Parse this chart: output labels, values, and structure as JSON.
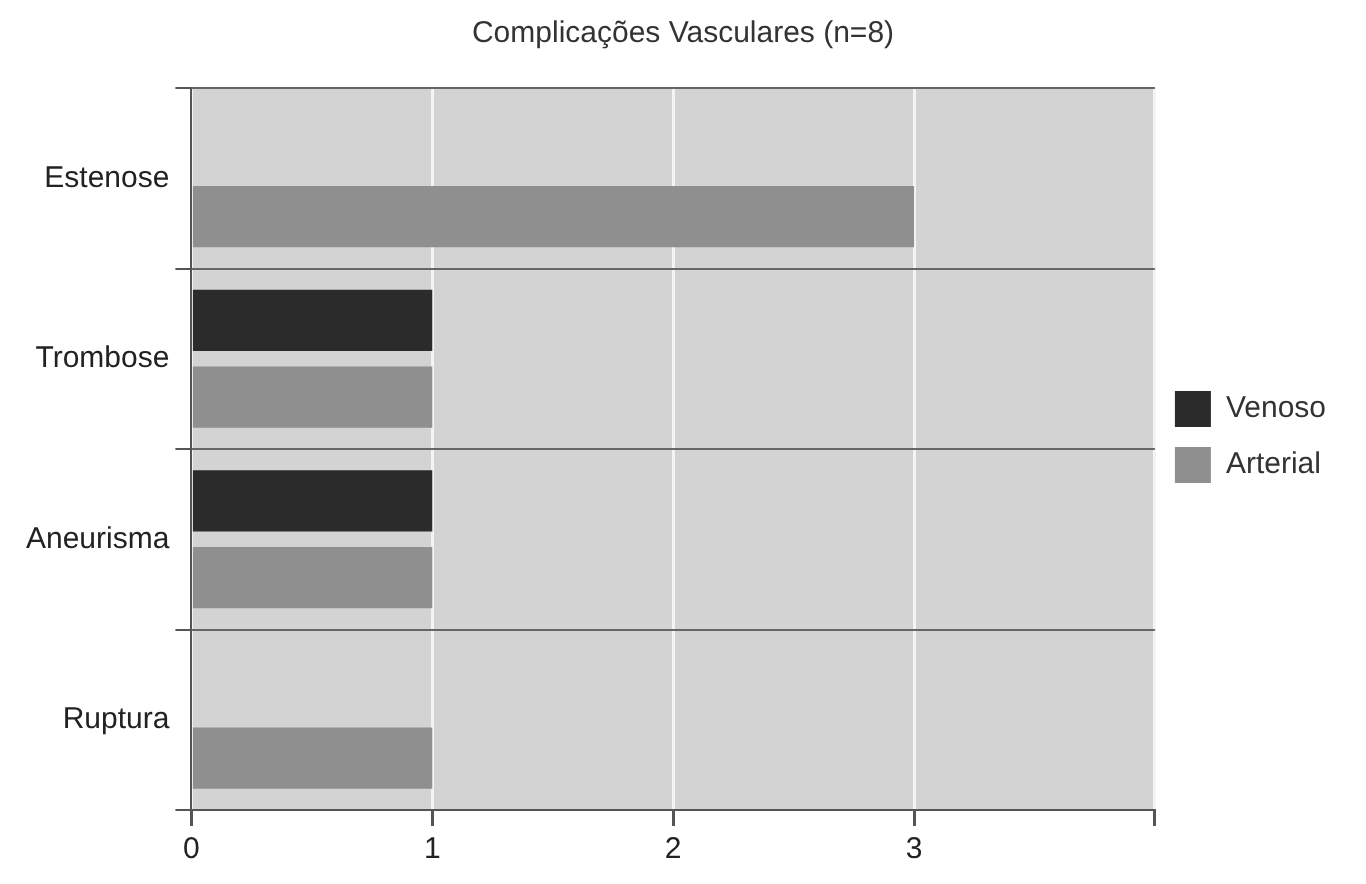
{
  "chart_data": {
    "type": "bar",
    "orientation": "horizontal",
    "title": "Complicações Vasculares (n=8)",
    "categories": [
      "Estenose",
      "Trombose",
      "Aneurisma",
      "Ruptura"
    ],
    "series": [
      {
        "name": "Venoso",
        "color": "#2b2b2b",
        "values": [
          null,
          1,
          1,
          null
        ]
      },
      {
        "name": "Arterial",
        "color": "#8f8f8f",
        "values": [
          3,
          1,
          1,
          1
        ]
      }
    ],
    "xlim": [
      0,
      4
    ],
    "xticks": [
      0,
      1,
      2,
      3,
      {
        "value": 4,
        "label": null
      }
    ],
    "grid": true,
    "legend": "right"
  }
}
